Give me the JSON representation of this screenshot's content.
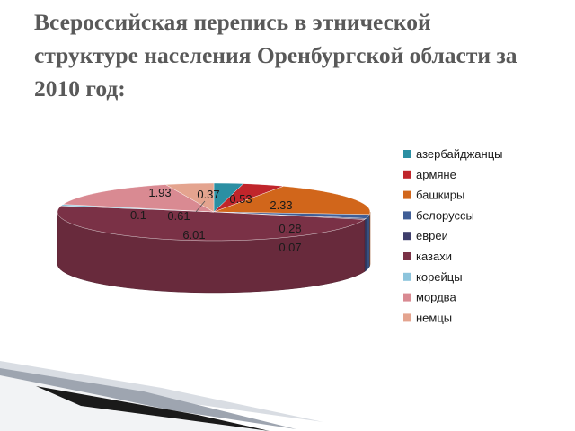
{
  "title": "Всероссийская перепись в этнической структуре населения Оренбургской области за 2010 год:",
  "chart_data": {
    "type": "pie",
    "categories": [
      "азербайджанцы",
      "армяне",
      "башкиры",
      "белоруссы",
      "евреи",
      "казахи",
      "корейцы",
      "мордва",
      "немцы"
    ],
    "values": [
      0.37,
      0.53,
      2.33,
      0.28,
      0.07,
      6.01,
      0.1,
      1.93,
      0.61
    ],
    "value_labels": [
      "0.37",
      "0.53",
      "2.33",
      "0.28",
      "0.07",
      "6.01",
      "0.1",
      "1.93",
      "0.61"
    ],
    "colors": [
      "#2b8fa3",
      "#c0252b",
      "#d1661b",
      "#3f5e97",
      "#3e3e6b",
      "#7a3146",
      "#8cc4dc",
      "#d98a92",
      "#e4a48f"
    ],
    "legend_position": "right"
  }
}
